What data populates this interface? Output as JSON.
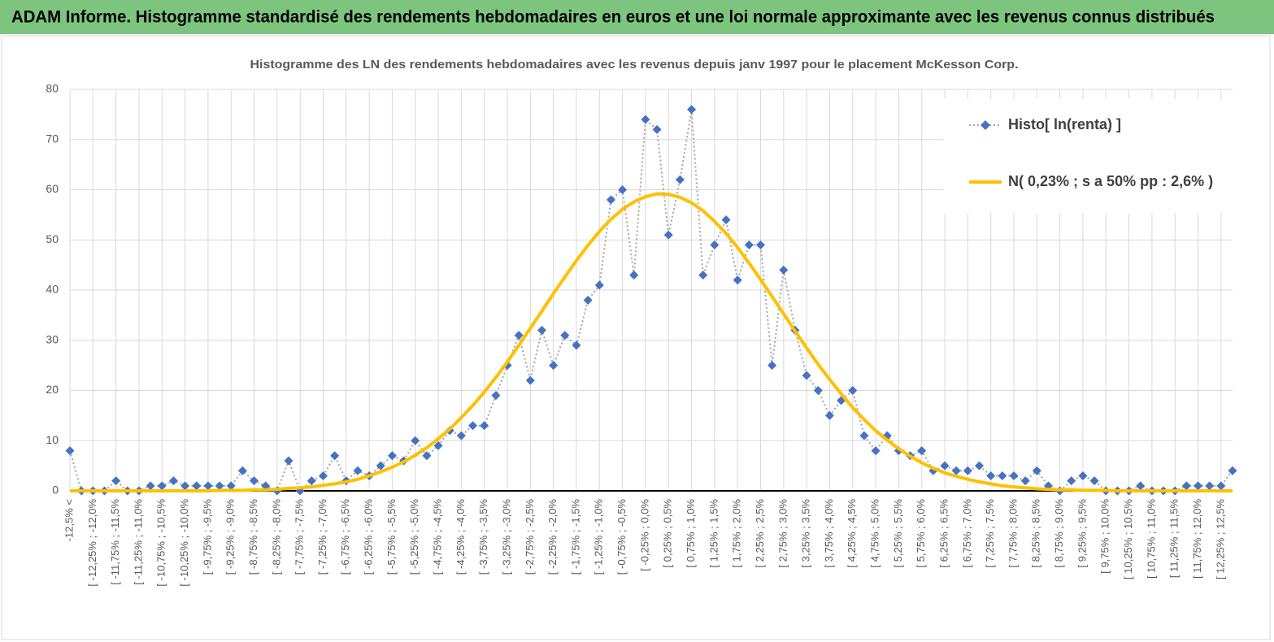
{
  "header": {
    "title": "ADAM Informe. Histogramme standardisé des rendements hebdomadaires en euros et une loi normale approximante avec les revenus connus distribués"
  },
  "chart_data": {
    "type": "line",
    "title": "Histogramme  des LN des rendements hebdomadaires avec les revenus depuis janv 1997 pour le placement McKesson Corp.",
    "categories": [
      "-12,5% <",
      null,
      "[ -12,25% ; -12,0%",
      null,
      "[ -11,75% ; -11,5%",
      null,
      "[ -11,25% ; -11,0%",
      null,
      "[ -10,75% ; -10,5%",
      null,
      "[ -10,25% ; -10,0%",
      null,
      "[ -9,75% ; -9,5%",
      null,
      "[ -9,25% ; -9,0%",
      null,
      "[ -8,75% ; -8,5%",
      null,
      "[ -8,25% ; -8,0%",
      null,
      "[ -7,75% ; -7,5%",
      null,
      "[ -7,25% ; -7,0%",
      null,
      "[ -6,75% ; -6,5%",
      null,
      "[ -6,25% ; -6,0%",
      null,
      "[ -5,75% ; -5,5%",
      null,
      "[ -5,25% ; -5,0%",
      null,
      "[ -4,75% ; -4,5%",
      null,
      "[ -4,25% ; -4,0%",
      null,
      "[ -3,75% ; -3,5%",
      null,
      "[ -3,25% ; -3,0%",
      null,
      "[ -2,75% ; -2,5%",
      null,
      "[ -2,25% ; -2,0%",
      null,
      "[ -1,75% ; -1,5%",
      null,
      "[ -1,25% ; -1,0%",
      null,
      "[ -0,75% ; -0,5%",
      null,
      "[ -0,25% ; 0,0%",
      null,
      "[ 0,25% ; 0,5%",
      null,
      "[ 0,75% ; 1,0%",
      null,
      "[ 1,25% ; 1,5%",
      null,
      "[ 1,75% ; 2,0%",
      null,
      "[ 2,25% ; 2,5%",
      null,
      "[ 2,75% ; 3,0%",
      null,
      "[ 3,25% ; 3,5%",
      null,
      "[ 3,75% ; 4,0%",
      null,
      "[ 4,25% ; 4,5%",
      null,
      "[ 4,75% ; 5,0%",
      null,
      "[ 5,25% ; 5,5%",
      null,
      "[ 5,75% ; 6,0%",
      null,
      "[ 6,25% ; 6,5%",
      null,
      "[ 6,75% ; 7,0%",
      null,
      "[ 7,25% ; 7,5%",
      null,
      "[ 7,75% ; 8,0%",
      null,
      "[ 8,25% ; 8,5%",
      null,
      "[ 8,75% ; 9,0%",
      null,
      "[ 9,25% ; 9,5%",
      null,
      "[ 9,75% ; 10,0%",
      null,
      "[ 10,25% ; 10,5%",
      null,
      "[ 10,75% ; 11,0%",
      null,
      "[ 11,25% ; 11,5%",
      null,
      "[ 11,75% ; 12,0%",
      null,
      "[ 12,25% ; 12,5%",
      null
    ],
    "series": [
      {
        "name": "Histo[ ln(renta) ]",
        "color": "#4472c4",
        "marker": "diamond",
        "values": [
          8,
          0,
          0,
          0,
          2,
          0,
          0,
          1,
          1,
          2,
          1,
          1,
          1,
          1,
          1,
          4,
          2,
          1,
          0,
          6,
          0,
          2,
          3,
          7,
          2,
          4,
          3,
          5,
          7,
          6,
          10,
          7,
          9,
          12,
          11,
          13,
          13,
          19,
          25,
          31,
          22,
          32,
          25,
          31,
          29,
          38,
          41,
          58,
          60,
          43,
          74,
          72,
          51,
          62,
          76,
          43,
          49,
          54,
          42,
          49,
          49,
          25,
          44,
          32,
          23,
          20,
          15,
          18,
          20,
          11,
          8,
          11,
          8,
          7,
          8,
          4,
          5,
          4,
          4,
          5,
          3,
          3,
          3,
          2,
          4,
          1,
          0,
          2,
          3,
          2,
          0,
          0,
          0,
          1,
          0,
          0,
          0,
          1,
          1,
          1,
          1,
          4
        ]
      },
      {
        "name": "N( 0,23% ; s a 50% pp : 2,6% )",
        "color": "#ffc000",
        "values": [
          0,
          0,
          0,
          0,
          0,
          0,
          0,
          0,
          0,
          0,
          0,
          0,
          0,
          0.1,
          0.1,
          0.1,
          0.2,
          0.2,
          0.3,
          0.5,
          0.6,
          0.8,
          1.1,
          1.4,
          1.8,
          2.3,
          3.0,
          3.8,
          4.7,
          5.8,
          7.1,
          8.6,
          10.4,
          12.3,
          14.6,
          17.0,
          19.7,
          22.6,
          25.7,
          29.0,
          32.4,
          35.8,
          39.3,
          42.6,
          45.9,
          48.9,
          51.7,
          54.1,
          56.1,
          57.6,
          58.6,
          59.2,
          59.1,
          58.5,
          57.4,
          55.8,
          53.7,
          51.3,
          48.5,
          45.4,
          42.1,
          38.7,
          35.3,
          31.8,
          28.5,
          25.2,
          22.2,
          19.3,
          16.6,
          14.2,
          12.0,
          10.1,
          8.4,
          6.9,
          5.6,
          4.5,
          3.6,
          2.9,
          2.3,
          1.8,
          1.4,
          1.0,
          0.8,
          0.6,
          0.4,
          0.3,
          0.2,
          0.2,
          0.1,
          0.1,
          0.1,
          0,
          0,
          0,
          0,
          0,
          0,
          0,
          0,
          0,
          0,
          0
        ]
      }
    ],
    "ylim": [
      0,
      80
    ],
    "yticks": [
      0,
      10,
      20,
      30,
      40,
      50,
      60,
      70,
      80
    ],
    "grid": true,
    "legend": "top-right"
  }
}
